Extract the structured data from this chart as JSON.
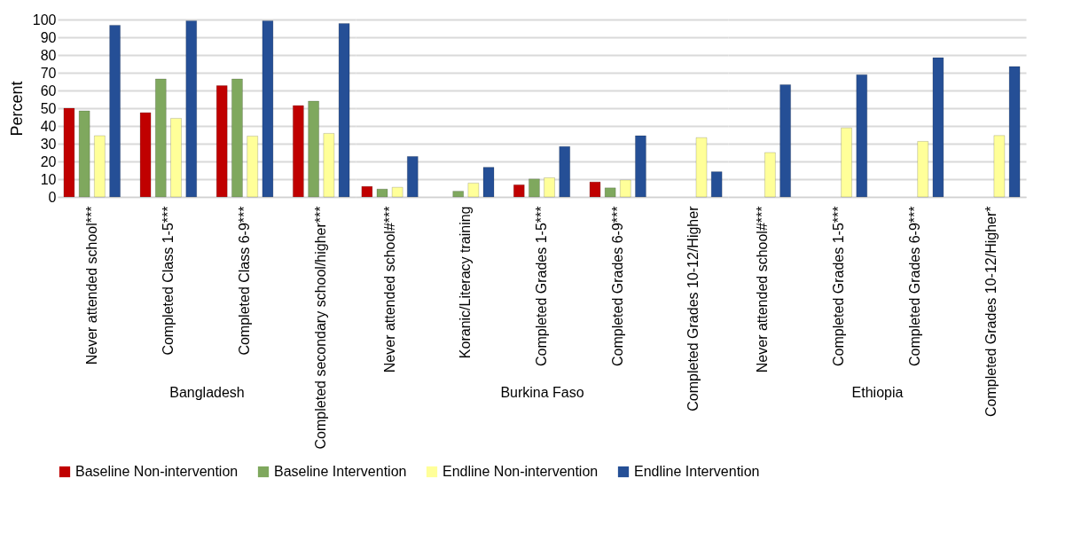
{
  "chart_data": [
    {
      "type": "bar",
      "xlabel": "Bangladesh",
      "ylabel": "Percent",
      "categories": [
        "Never attended school***",
        "Completed Class 1-5***",
        "Completed Class 6-9***",
        "Completed secondary school/higher***"
      ],
      "ylim": [
        0,
        100
      ],
      "yticks": [
        0,
        10,
        20,
        30,
        40,
        50,
        60,
        70,
        80,
        90,
        100
      ],
      "grid": "y",
      "legend": "bottom",
      "series": [
        {
          "name": "Baseline Non-intervention",
          "color": "#c00000",
          "values": [
            50,
            47.5,
            62.7,
            51.5
          ]
        },
        {
          "name": "Baseline Intervention",
          "color": "#7fa85e",
          "values": [
            48.5,
            66.5,
            66.5,
            54
          ]
        },
        {
          "name": "Endline Non-intervention",
          "color": "#ffff99",
          "values": [
            34.5,
            44.3,
            34.3,
            35.8
          ]
        },
        {
          "name": "Endline Intervention",
          "color": "#254f96",
          "values": [
            96.8,
            99.3,
            99.3,
            97.8
          ]
        }
      ]
    },
    {
      "type": "bar",
      "xlabel": "Burkina Faso",
      "categories": [
        "Never attended school#***",
        "Koranic/Literacy training",
        "Completed Grades 1-5***",
        "Completed Grades 6-9***",
        "Completed Grades 10-12/Higher"
      ],
      "ylim": [
        0,
        100
      ],
      "yticks": [
        0,
        10,
        20,
        30,
        40,
        50,
        60,
        70,
        80,
        90,
        100
      ],
      "grid": "y",
      "tick_labels": "x",
      "series": [
        {
          "name": "Baseline Non-intervention",
          "color": "#c00000",
          "values": [
            5.9,
            null,
            6.8,
            8.4,
            null
          ]
        },
        {
          "name": "Baseline Intervention",
          "color": "#7fa85e",
          "values": [
            4.4,
            3.2,
            10.1,
            5.1,
            null
          ]
        },
        {
          "name": "Endline Non-intervention",
          "color": "#ffff99",
          "values": [
            5.4,
            7.8,
            10.8,
            9.5,
            33.4
          ]
        },
        {
          "name": "Endline Intervention",
          "color": "#254f96",
          "values": [
            22.8,
            16.7,
            28.4,
            34.5,
            14.2
          ]
        }
      ]
    },
    {
      "type": "bar",
      "xlabel": "Ethiopia",
      "categories": [
        "Never attended school#***",
        "Completed Grades 1-5***",
        "Completed Grades 6-9***",
        "Completed Grades 10-12/Higher*"
      ],
      "ylim": [
        0,
        100
      ],
      "yticks": [
        0,
        10,
        20,
        30,
        40,
        50,
        60,
        70,
        80,
        90,
        100
      ],
      "grid": "y",
      "tick_labels": "x",
      "series": [
        {
          "name": "Baseline Non-intervention",
          "color": "#c00000",
          "values": [
            null,
            null,
            null,
            null
          ]
        },
        {
          "name": "Baseline Intervention",
          "color": "#7fa85e",
          "values": [
            null,
            null,
            null,
            null
          ]
        },
        {
          "name": "Endline Non-intervention",
          "color": "#ffff99",
          "values": [
            25,
            38.9,
            31.3,
            34.6
          ]
        },
        {
          "name": "Endline Intervention",
          "color": "#254f96",
          "values": [
            63.3,
            68.9,
            78.5,
            73.5
          ]
        }
      ]
    }
  ]
}
